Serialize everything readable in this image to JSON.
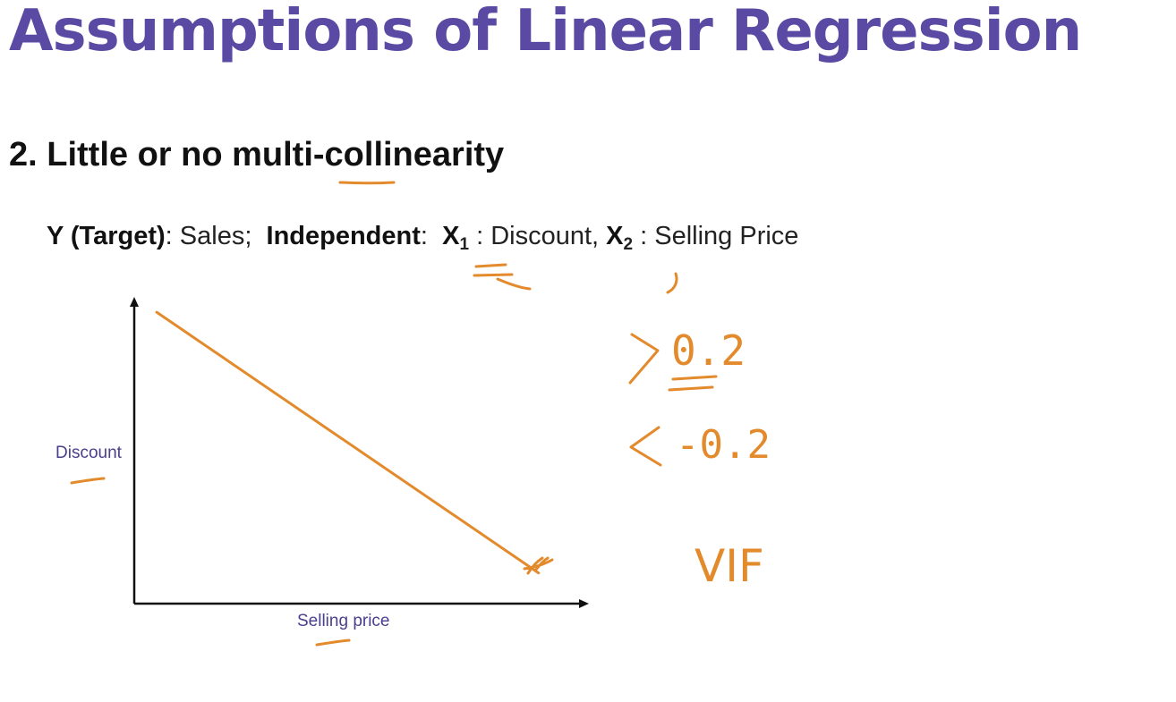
{
  "slide": {
    "title": "Assumptions of Linear Regression",
    "subtitle": "2. Little or no multi-collinearity",
    "description": {
      "target_label": "Y (Target)",
      "target_value": ": Sales;",
      "independent_label": "Independent",
      "independent_sep": ":",
      "x1_var": "X",
      "x1_sub": "1",
      "x1_desc": ": Discount,",
      "x2_var": "X",
      "x2_sub": "2",
      "x2_desc": ": Selling Price"
    }
  },
  "chart_data": {
    "type": "line",
    "xlabel": "Selling price",
    "ylabel": "Discount",
    "series": [
      {
        "x": [
          0.05,
          0.9
        ],
        "y": [
          0.95,
          0.1
        ]
      }
    ],
    "color": "#e38a2c",
    "axis_color": "#111111"
  },
  "annotations": {
    "ink_color": "#e38a2c",
    "handwriting": [
      "> 0.2",
      "< -0.2",
      "VIF"
    ]
  }
}
